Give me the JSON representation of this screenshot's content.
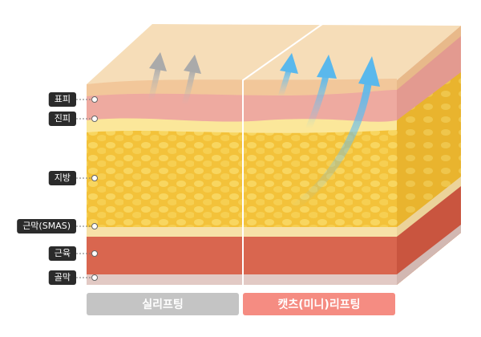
{
  "layers": [
    {
      "label": "표피"
    },
    {
      "label": "진피"
    },
    {
      "label": "지방"
    },
    {
      "label": "근막(SMAS)"
    },
    {
      "label": "근육"
    },
    {
      "label": "골막"
    }
  ],
  "buttons": [
    {
      "label": "실리프팅"
    },
    {
      "label": "캣츠(미니)리프팅"
    }
  ]
}
